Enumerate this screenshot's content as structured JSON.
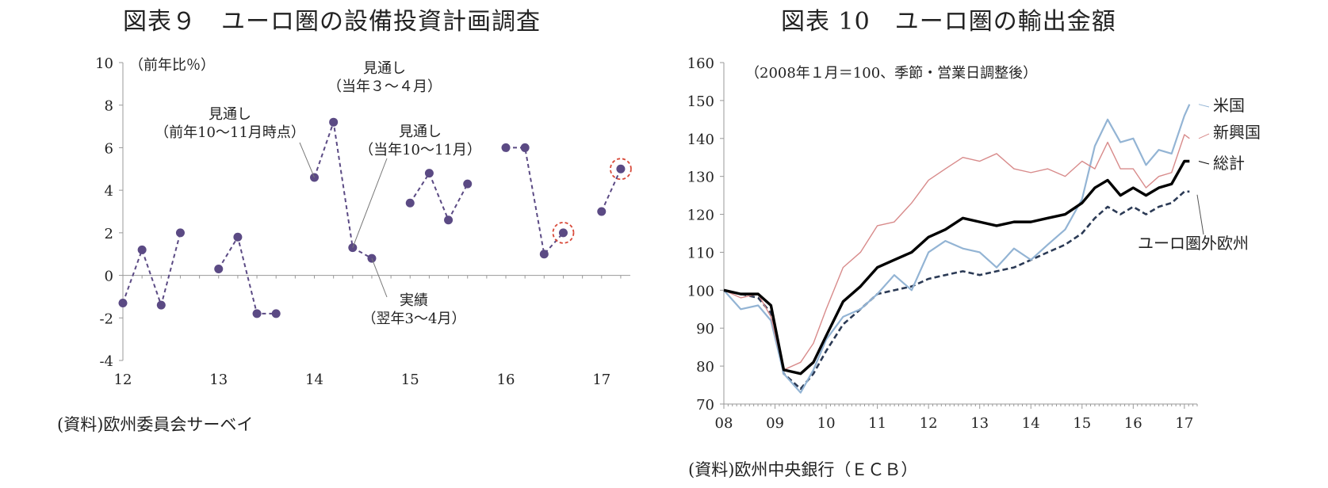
{
  "left_panel": {
    "title": "図表９　ユーロ圏の設備投資計画調査",
    "source": "(資料)欧州委員会サーベイ"
  },
  "right_panel": {
    "title": "図表 10　ユーロ圏の輸出金額",
    "source": "(資料)欧州中央銀行（ＥＣＢ）"
  },
  "chart_data": [
    {
      "type": "line",
      "title": "図表９　ユーロ圏の設備投資計画調査",
      "unit_label": "（前年比％）",
      "ylim": [
        -4,
        10
      ],
      "yticks": [
        -4,
        -2,
        0,
        2,
        4,
        6,
        8,
        10
      ],
      "xlim": [
        12,
        17.3
      ],
      "xticks": [
        12,
        13,
        14,
        15,
        16,
        17
      ],
      "xtick_labels": [
        "12",
        "13",
        "14",
        "15",
        "16",
        "17"
      ],
      "grid": false,
      "series": [
        {
          "x": [
            12.0,
            12.2,
            12.4,
            12.6
          ],
          "y": [
            -1.3,
            1.2,
            -1.4,
            2.0
          ]
        },
        {
          "x": [
            13.0,
            13.2,
            13.4,
            13.6
          ],
          "y": [
            0.3,
            1.8,
            -1.8,
            -1.8
          ]
        },
        {
          "x": [
            14.0,
            14.2,
            14.4,
            14.6
          ],
          "y": [
            4.6,
            7.2,
            1.3,
            0.8
          ]
        },
        {
          "x": [
            15.0,
            15.2,
            15.4,
            15.6
          ],
          "y": [
            3.4,
            4.8,
            2.6,
            4.3
          ]
        },
        {
          "x": [
            16.0,
            16.2,
            16.4,
            16.6
          ],
          "y": [
            6.0,
            6.0,
            1.0,
            2.0
          ]
        },
        {
          "x": [
            17.0,
            17.2
          ],
          "y": [
            3.0,
            5.0
          ]
        }
      ],
      "highlighted_points": [
        {
          "x": 16.6,
          "y": 2.0
        },
        {
          "x": 17.2,
          "y": 5.0
        }
      ],
      "annotations": [
        {
          "lines": [
            "見通し",
            "（前年10～11月時点）"
          ],
          "x": 14.0,
          "y": 4.6
        },
        {
          "lines": [
            "見通し",
            "（当年３～４月）"
          ],
          "x": 14.2,
          "y": 7.2
        },
        {
          "lines": [
            "見通し",
            "（当年10～11月）"
          ],
          "x": 14.4,
          "y": 1.3
        },
        {
          "lines": [
            "実績",
            "（翌年3～4月）"
          ],
          "x": 14.6,
          "y": 0.8
        }
      ]
    },
    {
      "type": "line",
      "title": "図表 10　ユーロ圏の輸出金額",
      "unit_label": "（2008年１月＝100、季節・営業日調整後）",
      "ylim": [
        70,
        160
      ],
      "yticks": [
        70,
        80,
        90,
        100,
        110,
        120,
        130,
        140,
        150,
        160
      ],
      "xlim": [
        2008,
        2017.25
      ],
      "xticks": [
        2008,
        2009,
        2010,
        2011,
        2012,
        2013,
        2014,
        2015,
        2016,
        2017
      ],
      "xtick_labels": [
        "08",
        "09",
        "10",
        "11",
        "12",
        "13",
        "14",
        "15",
        "16",
        "17"
      ],
      "grid": false,
      "series": [
        {
          "name": "米国",
          "color": "#93b4d4",
          "x": [
            2008.0,
            2008.33,
            2008.67,
            2008.92,
            2009.17,
            2009.5,
            2009.75,
            2010.0,
            2010.33,
            2010.67,
            2011.0,
            2011.33,
            2011.67,
            2012.0,
            2012.33,
            2012.67,
            2013.0,
            2013.33,
            2013.67,
            2014.0,
            2014.33,
            2014.67,
            2015.0,
            2015.25,
            2015.5,
            2015.75,
            2016.0,
            2016.25,
            2016.5,
            2016.75,
            2017.0,
            2017.1
          ],
          "y": [
            100,
            95,
            96,
            92,
            78,
            73,
            79,
            87,
            93,
            95,
            99,
            104,
            100,
            110,
            113,
            111,
            110,
            106,
            111,
            108,
            112,
            116,
            124,
            138,
            145,
            139,
            140,
            133,
            137,
            136,
            146,
            149
          ]
        },
        {
          "name": "新興国",
          "color": "#d88b8b",
          "x": [
            2008.0,
            2008.33,
            2008.67,
            2008.92,
            2009.17,
            2009.5,
            2009.75,
            2010.0,
            2010.33,
            2010.67,
            2011.0,
            2011.33,
            2011.67,
            2012.0,
            2012.33,
            2012.67,
            2013.0,
            2013.33,
            2013.67,
            2014.0,
            2014.33,
            2014.67,
            2015.0,
            2015.25,
            2015.5,
            2015.75,
            2016.0,
            2016.25,
            2016.5,
            2016.75,
            2017.0,
            2017.1
          ],
          "y": [
            100,
            98,
            99,
            93,
            79,
            81,
            86,
            95,
            106,
            110,
            117,
            118,
            123,
            129,
            132,
            135,
            134,
            136,
            132,
            131,
            132,
            130,
            134,
            132,
            139,
            132,
            132,
            127,
            130,
            131,
            141,
            140
          ]
        },
        {
          "name": "総計",
          "color": "#000000",
          "x": [
            2008.0,
            2008.33,
            2008.67,
            2008.92,
            2009.17,
            2009.5,
            2009.75,
            2010.0,
            2010.33,
            2010.67,
            2011.0,
            2011.33,
            2011.67,
            2012.0,
            2012.33,
            2012.67,
            2013.0,
            2013.33,
            2013.67,
            2014.0,
            2014.33,
            2014.67,
            2015.0,
            2015.25,
            2015.5,
            2015.75,
            2016.0,
            2016.25,
            2016.5,
            2016.75,
            2017.0,
            2017.1
          ],
          "y": [
            100,
            99,
            99,
            96,
            79,
            78,
            81,
            88,
            97,
            101,
            106,
            108,
            110,
            114,
            116,
            119,
            118,
            117,
            118,
            118,
            119,
            120,
            123,
            127,
            129,
            125,
            127,
            125,
            127,
            128,
            134,
            134
          ]
        },
        {
          "name": "ユーロ圏外欧州",
          "color": "#2b3a55",
          "dashed": true,
          "x": [
            2008.0,
            2008.33,
            2008.67,
            2008.92,
            2009.17,
            2009.5,
            2009.75,
            2010.0,
            2010.33,
            2010.67,
            2011.0,
            2011.33,
            2011.67,
            2012.0,
            2012.33,
            2012.67,
            2013.0,
            2013.33,
            2013.67,
            2014.0,
            2014.33,
            2014.67,
            2015.0,
            2015.25,
            2015.5,
            2015.75,
            2016.0,
            2016.25,
            2016.5,
            2016.75,
            2017.0,
            2017.1
          ],
          "y": [
            100,
            99,
            98,
            94,
            78,
            74,
            78,
            84,
            91,
            95,
            99,
            100,
            101,
            103,
            104,
            105,
            104,
            105,
            106,
            108,
            110,
            112,
            115,
            119,
            122,
            120,
            122,
            120,
            122,
            123,
            126,
            126
          ]
        }
      ]
    }
  ]
}
